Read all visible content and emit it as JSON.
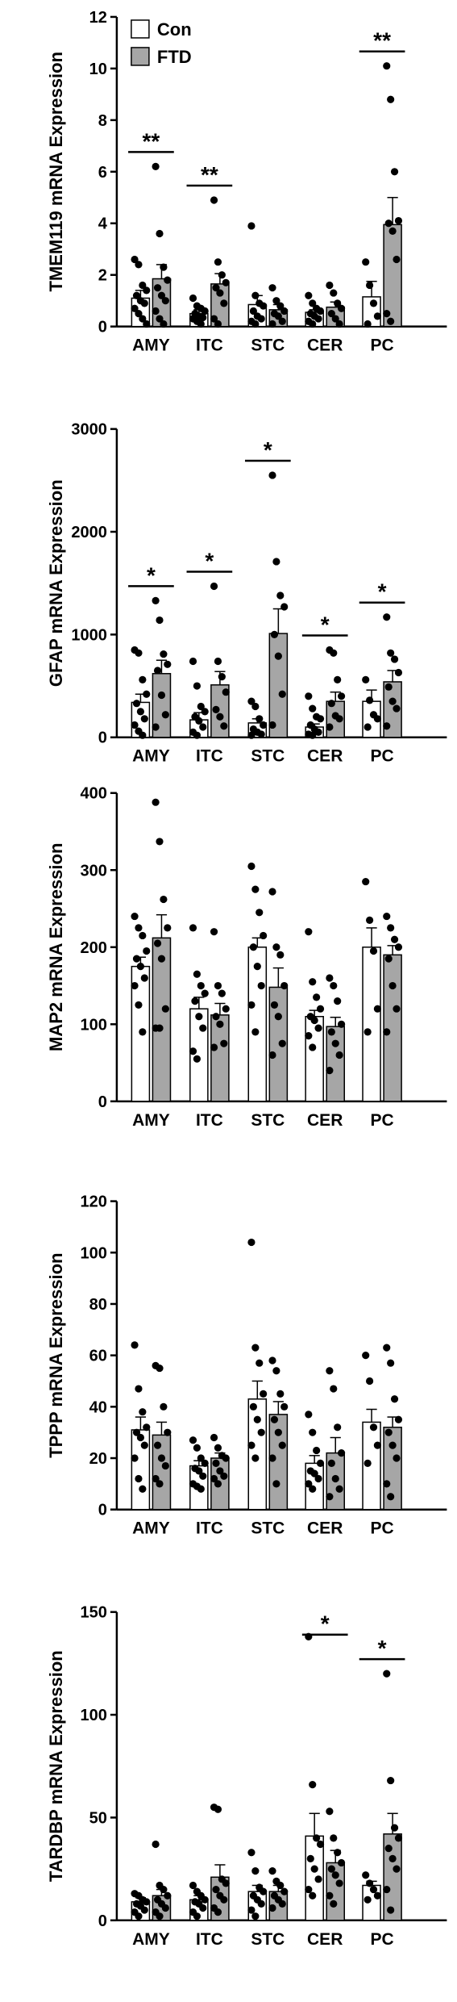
{
  "colors": {
    "con": "#ffffff",
    "ftd": "#a6a6a6",
    "ink": "#000000"
  },
  "chart_data": [
    {
      "type": "bar",
      "categories": [
        "AMY",
        "ITC",
        "STC",
        "CER",
        "PC"
      ],
      "ylabel": "TMEM119 mRNA Expression",
      "ylim": [
        0,
        12
      ],
      "yticks": [
        0,
        2,
        4,
        6,
        8,
        10,
        12
      ],
      "legend": {
        "placement": "top-left",
        "entries": [
          "Con",
          "FTD"
        ]
      },
      "series": [
        {
          "name": "Con",
          "values": [
            1.1,
            0.5,
            0.85,
            0.55,
            1.15
          ],
          "sem": [
            0.3,
            0.15,
            0.35,
            0.1,
            0.6
          ],
          "points": [
            [
              2.6,
              2.4,
              1.6,
              1.4,
              1.2,
              1.0,
              0.9,
              0.7,
              0.5,
              0.3,
              0.1
            ],
            [
              1.1,
              0.8,
              0.7,
              0.6,
              0.5,
              0.4,
              0.35,
              0.3,
              0.2,
              0.1
            ],
            [
              3.9,
              1.2,
              0.9,
              0.8,
              0.6,
              0.4,
              0.3,
              0.2,
              0.1
            ],
            [
              1.2,
              0.9,
              0.7,
              0.6,
              0.5,
              0.4,
              0.3,
              0.2,
              0.1
            ],
            [
              2.5,
              1.6,
              0.9,
              0.4,
              0.1
            ]
          ]
        },
        {
          "name": "FTD",
          "values": [
            1.85,
            1.65,
            0.65,
            0.75,
            3.95
          ],
          "sem": [
            0.55,
            0.4,
            0.2,
            0.2,
            1.05
          ],
          "points": [
            [
              6.2,
              3.6,
              2.3,
              1.8,
              1.5,
              1.2,
              1.0,
              0.6,
              0.3,
              0.1
            ],
            [
              4.9,
              2.5,
              2.0,
              1.7,
              1.5,
              1.3,
              0.9,
              0.3,
              0.1
            ],
            [
              1.5,
              1.0,
              0.8,
              0.6,
              0.5,
              0.4,
              0.2,
              0.1
            ],
            [
              1.6,
              1.3,
              0.9,
              0.7,
              0.5,
              0.3,
              0.1
            ],
            [
              10.1,
              8.8,
              6.0,
              4.1,
              4.0,
              3.7,
              2.6,
              0.5,
              0.2
            ]
          ]
        }
      ],
      "significance": [
        "**",
        "**",
        "",
        "",
        "**"
      ]
    },
    {
      "type": "bar",
      "categories": [
        "AMY",
        "ITC",
        "STC",
        "CER",
        "PC"
      ],
      "ylabel": "GFAP mRNA Expression",
      "ylim": [
        0,
        3000
      ],
      "yticks": [
        0,
        1000,
        2000,
        3000
      ],
      "series": [
        {
          "name": "Con",
          "values": [
            340,
            170,
            140,
            100,
            350
          ],
          "sem": [
            80,
            70,
            40,
            30,
            110
          ],
          "points": [
            [
              850,
              820,
              560,
              420,
              330,
              250,
              180,
              120,
              60,
              20
            ],
            [
              740,
              500,
              300,
              250,
              200,
              160,
              100,
              50,
              20
            ],
            [
              350,
              300,
              180,
              120,
              80,
              50,
              30,
              20
            ],
            [
              400,
              280,
              200,
              180,
              120,
              80,
              50,
              30,
              20
            ],
            [
              560,
              360,
              220,
              180,
              100
            ]
          ]
        },
        {
          "name": "FTD",
          "values": [
            620,
            510,
            1010,
            350,
            540
          ],
          "sem": [
            130,
            130,
            240,
            90,
            110
          ],
          "points": [
            [
              1330,
              1140,
              810,
              710,
              650,
              410,
              220,
              100
            ],
            [
              1470,
              740,
              590,
              440,
              270,
              200,
              110
            ],
            [
              2550,
              1710,
              1380,
              1270,
              1000,
              790,
              420,
              120
            ],
            [
              850,
              820,
              560,
              400,
              330,
              210,
              180,
              100
            ],
            [
              1170,
              820,
              760,
              630,
              490,
              350,
              280,
              110
            ]
          ]
        }
      ],
      "significance": [
        "*",
        "*",
        "*",
        "*",
        "*"
      ]
    },
    {
      "type": "bar",
      "categories": [
        "AMY",
        "ITC",
        "STC",
        "CER",
        "PC"
      ],
      "ylabel": "MAP2 mRNA Expression",
      "ylim": [
        0,
        400
      ],
      "yticks": [
        0,
        100,
        200,
        300,
        400
      ],
      "series": [
        {
          "name": "Con",
          "values": [
            175,
            120,
            200,
            110,
            200
          ],
          "sem": [
            12,
            15,
            12,
            8,
            25
          ],
          "points": [
            [
              240,
              225,
              215,
              195,
              185,
              175,
              160,
              150,
              125,
              90
            ],
            [
              225,
              165,
              150,
              140,
              130,
              110,
              95,
              65,
              55
            ],
            [
              305,
              275,
              245,
              215,
              200,
              175,
              150,
              125,
              90
            ],
            [
              220,
              155,
              135,
              120,
              110,
              105,
              95,
              85,
              70
            ],
            [
              285,
              235,
              195,
              120,
              90
            ]
          ]
        },
        {
          "name": "FTD",
          "values": [
            212,
            112,
            148,
            97,
            190
          ],
          "sem": [
            30,
            15,
            25,
            12,
            12
          ],
          "points": [
            [
              388,
              337,
              262,
              225,
              205,
              185,
              120,
              95,
              95
            ],
            [
              220,
              150,
              140,
              120,
              110,
              100,
              75,
              70
            ],
            [
              272,
              200,
              190,
              150,
              125,
              110,
              75,
              60
            ],
            [
              160,
              150,
              130,
              100,
              90,
              75,
              60,
              40
            ],
            [
              240,
              225,
              210,
              200,
              185,
              150,
              120,
              90
            ]
          ]
        }
      ],
      "significance": [
        "",
        "",
        "",
        "",
        ""
      ]
    },
    {
      "type": "bar",
      "categories": [
        "AMY",
        "ITC",
        "STC",
        "CER",
        "PC"
      ],
      "ylabel": "TPPP mRNA Expression",
      "ylim": [
        0,
        120
      ],
      "yticks": [
        0,
        20,
        40,
        60,
        80,
        100,
        120
      ],
      "series": [
        {
          "name": "Con",
          "values": [
            31,
            17,
            43,
            18,
            34
          ],
          "sem": [
            5,
            2,
            7,
            3,
            5
          ],
          "points": [
            [
              64,
              47,
              38,
              32,
              30,
              28,
              25,
              20,
              12,
              8
            ],
            [
              27,
              24,
              20,
              18,
              16,
              15,
              13,
              10,
              9,
              8
            ],
            [
              104,
              63,
              57,
              45,
              40,
              35,
              30,
              25,
              20
            ],
            [
              37,
              30,
              23,
              18,
              15,
              14,
              12,
              10,
              8
            ],
            [
              60,
              50,
              32,
              25,
              18
            ]
          ]
        },
        {
          "name": "FTD",
          "values": [
            29,
            20,
            37,
            22,
            32
          ],
          "sem": [
            5,
            2,
            5,
            6,
            4
          ],
          "points": [
            [
              56,
              55,
              40,
              30,
              25,
              20,
              17,
              12,
              10
            ],
            [
              28,
              24,
              21,
              20,
              18,
              15,
              13,
              12,
              10
            ],
            [
              58,
              54,
              45,
              40,
              35,
              30,
              25,
              20,
              10
            ],
            [
              54,
              47,
              32,
              22,
              18,
              12,
              8,
              5
            ],
            [
              63,
              57,
              43,
              35,
              30,
              25,
              20,
              10,
              5
            ]
          ]
        }
      ],
      "significance": [
        "",
        "",
        "",
        "",
        ""
      ]
    },
    {
      "type": "bar",
      "categories": [
        "AMY",
        "ITC",
        "STC",
        "CER",
        "PC"
      ],
      "ylabel": "TARDBP mRNA Expression",
      "ylim": [
        0,
        150
      ],
      "yticks": [
        0,
        50,
        100,
        150
      ],
      "series": [
        {
          "name": "Con",
          "values": [
            9,
            10,
            14,
            41,
            17
          ],
          "sem": [
            2,
            2,
            3,
            11,
            2
          ],
          "points": [
            [
              13,
              12,
              10,
              9,
              8,
              7,
              5,
              4,
              2
            ],
            [
              17,
              14,
              12,
              10,
              9,
              8,
              6,
              4,
              2
            ],
            [
              33,
              24,
              16,
              14,
              12,
              10,
              8,
              5,
              2
            ],
            [
              138,
              66,
              40,
              37,
              30,
              25,
              20,
              15,
              12
            ],
            [
              22,
              18,
              15,
              12,
              10
            ]
          ]
        },
        {
          "name": "FTD",
          "values": [
            12,
            21,
            14,
            28,
            42
          ],
          "sem": [
            3,
            6,
            3,
            6,
            10
          ],
          "points": [
            [
              37,
              17,
              15,
              12,
              10,
              8,
              6,
              4,
              2
            ],
            [
              55,
              54,
              20,
              18,
              15,
              12,
              10,
              6,
              4
            ],
            [
              24,
              19,
              17,
              14,
              12,
              10,
              8,
              6
            ],
            [
              53,
              40,
              33,
              28,
              25,
              22,
              18,
              12,
              8
            ],
            [
              120,
              68,
              45,
              40,
              35,
              30,
              25,
              15,
              5
            ]
          ]
        }
      ],
      "significance": [
        "",
        "",
        "",
        "*",
        "*"
      ]
    }
  ]
}
